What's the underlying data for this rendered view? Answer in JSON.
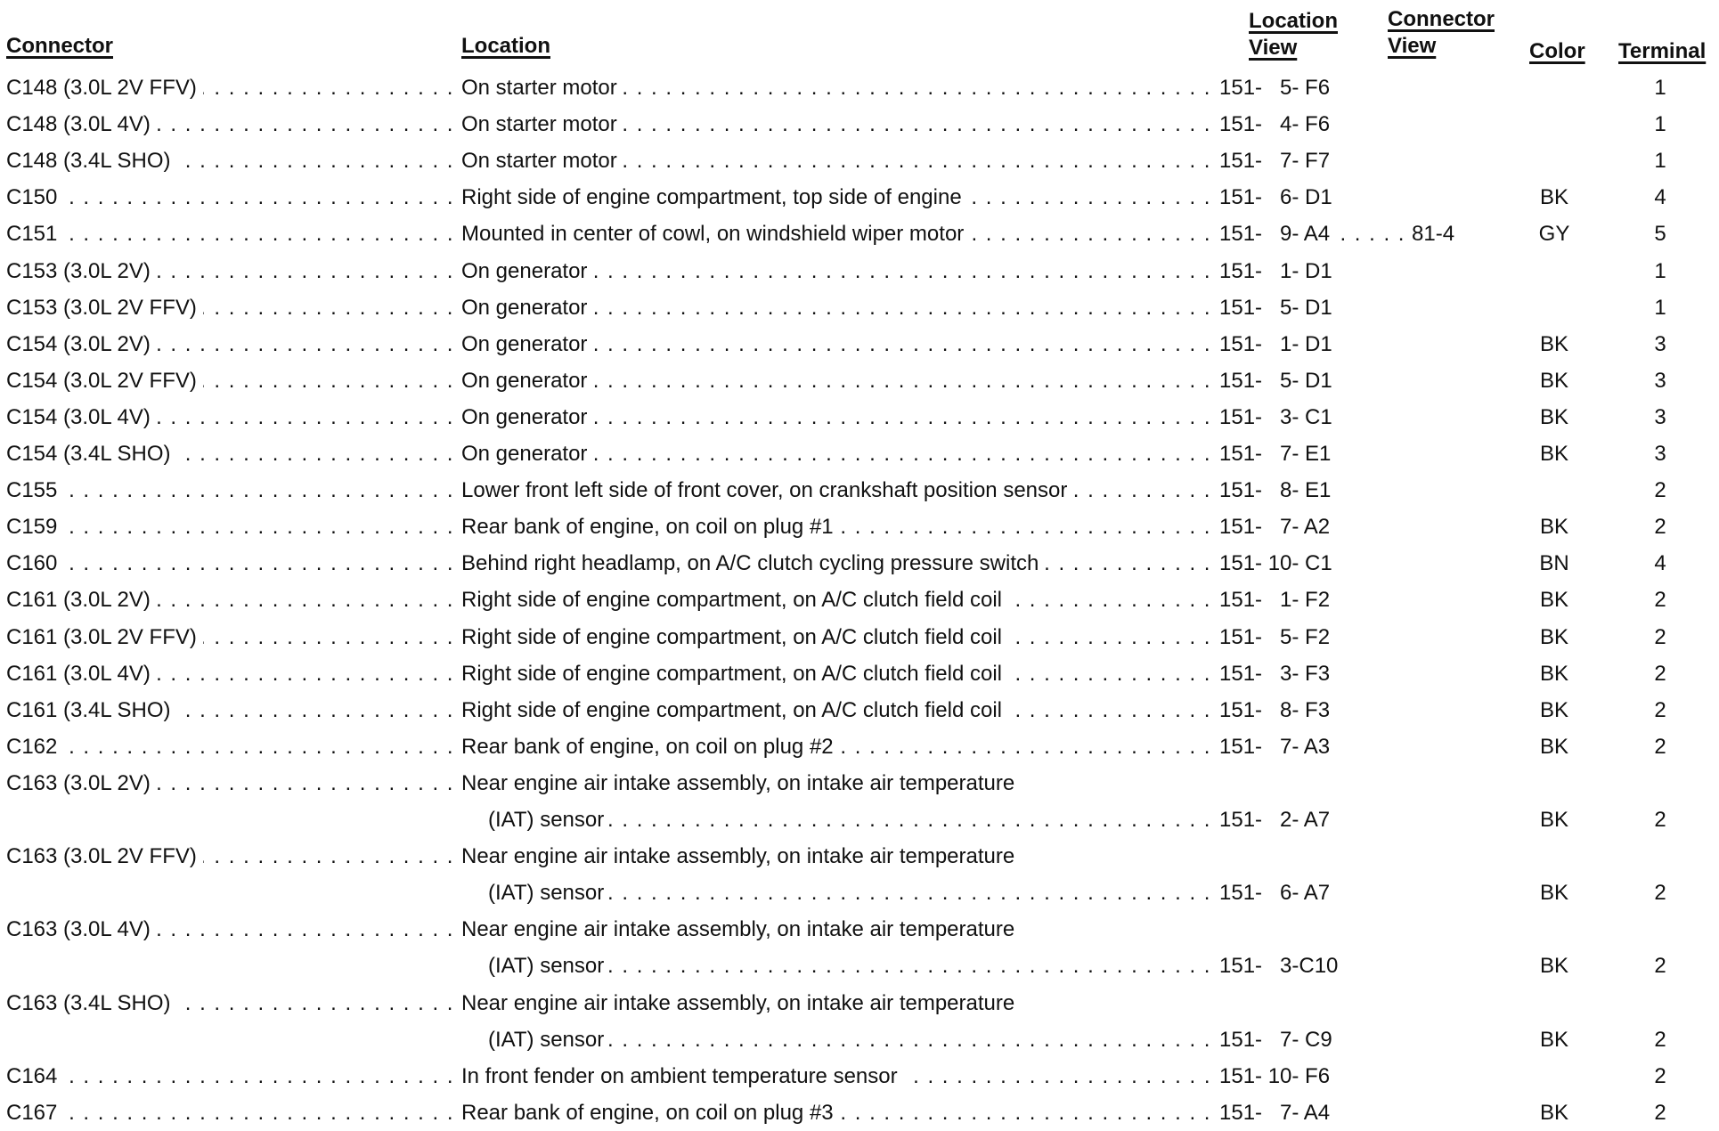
{
  "headers": {
    "connector": "Connector",
    "location": "Location",
    "location_view_1": "Location",
    "location_view_2": "View",
    "connector_view_1": "Connector",
    "connector_view_2": "View",
    "color": "Color",
    "terminal": "Terminal"
  },
  "rows": [
    {
      "connector": "C148 (3.0L 2V FFV)",
      "location": [
        "On starter motor"
      ],
      "location_view": "151- 5- F6",
      "connector_view": "",
      "color": "",
      "terminal": "1"
    },
    {
      "connector": "C148 (3.0L 4V)",
      "location": [
        "On starter motor"
      ],
      "location_view": "151- 4- F6",
      "connector_view": "",
      "color": "",
      "terminal": "1"
    },
    {
      "connector": "C148 (3.4L SHO)",
      "location": [
        "On starter motor"
      ],
      "location_view": "151- 7- F7",
      "connector_view": "",
      "color": "",
      "terminal": "1"
    },
    {
      "connector": "C150",
      "location": [
        "Right side of engine compartment, top side of engine"
      ],
      "location_view": "151- 6- D1",
      "connector_view": "",
      "color": "BK",
      "terminal": "4"
    },
    {
      "connector": "C151",
      "location": [
        "Mounted in center of cowl, on windshield wiper motor"
      ],
      "location_view": "151- 9- A4",
      "connector_view": "81-4",
      "color": "GY",
      "terminal": "5"
    },
    {
      "connector": "C153 (3.0L 2V)",
      "location": [
        "On generator"
      ],
      "location_view": "151- 1- D1",
      "connector_view": "",
      "color": "",
      "terminal": "1"
    },
    {
      "connector": "C153 (3.0L 2V FFV)",
      "location": [
        "On generator"
      ],
      "location_view": "151- 5- D1",
      "connector_view": "",
      "color": "",
      "terminal": "1"
    },
    {
      "connector": "C154 (3.0L 2V)",
      "location": [
        "On generator"
      ],
      "location_view": "151- 1- D1",
      "connector_view": "",
      "color": "BK",
      "terminal": "3"
    },
    {
      "connector": "C154 (3.0L 2V FFV)",
      "location": [
        "On generator"
      ],
      "location_view": "151- 5- D1",
      "connector_view": "",
      "color": "BK",
      "terminal": "3"
    },
    {
      "connector": "C154 (3.0L 4V)",
      "location": [
        "On generator"
      ],
      "location_view": "151- 3- C1",
      "connector_view": "",
      "color": "BK",
      "terminal": "3"
    },
    {
      "connector": "C154 (3.4L SHO)",
      "location": [
        "On generator"
      ],
      "location_view": "151- 7- E1",
      "connector_view": "",
      "color": "BK",
      "terminal": "3"
    },
    {
      "connector": "C155",
      "location": [
        "Lower front left side of front cover, on crankshaft position sensor"
      ],
      "location_view": "151- 8- E1",
      "connector_view": "",
      "color": "",
      "terminal": "2"
    },
    {
      "connector": "C159",
      "location": [
        "Rear bank of engine, on coil on plug #1"
      ],
      "location_view": "151- 7- A2",
      "connector_view": "",
      "color": "BK",
      "terminal": "2"
    },
    {
      "connector": "C160",
      "location": [
        "Behind right headlamp, on A/C clutch cycling pressure switch"
      ],
      "location_view": "151- 10- C1",
      "connector_view": "",
      "color": "BN",
      "terminal": "4"
    },
    {
      "connector": "C161 (3.0L 2V)",
      "location": [
        "Right side of engine compartment, on A/C clutch field coil"
      ],
      "location_view": "151- 1- F2",
      "connector_view": "",
      "color": "BK",
      "terminal": "2"
    },
    {
      "connector": "C161 (3.0L 2V FFV)",
      "location": [
        "Right side of engine compartment, on A/C clutch field coil"
      ],
      "location_view": "151- 5- F2",
      "connector_view": "",
      "color": "BK",
      "terminal": "2"
    },
    {
      "connector": "C161 (3.0L 4V)",
      "location": [
        "Right side of engine compartment, on A/C clutch field coil"
      ],
      "location_view": "151- 3- F3",
      "connector_view": "",
      "color": "BK",
      "terminal": "2"
    },
    {
      "connector": "C161 (3.4L SHO)",
      "location": [
        "Right side of engine compartment, on A/C clutch field coil"
      ],
      "location_view": "151- 8- F3",
      "connector_view": "",
      "color": "BK",
      "terminal": "2"
    },
    {
      "connector": "C162",
      "location": [
        "Rear bank of engine, on coil on plug #2"
      ],
      "location_view": "151- 7- A3",
      "connector_view": "",
      "color": "BK",
      "terminal": "2"
    },
    {
      "connector": "C163 (3.0L 2V)",
      "location": [
        "Near engine air intake assembly, on intake air temperature",
        "(IAT) sensor"
      ],
      "location_view": "151- 2- A7",
      "connector_view": "",
      "color": "BK",
      "terminal": "2"
    },
    {
      "connector": "C163 (3.0L 2V FFV)",
      "location": [
        "Near engine air intake assembly, on intake air temperature",
        "(IAT) sensor"
      ],
      "location_view": "151- 6- A7",
      "connector_view": "",
      "color": "BK",
      "terminal": "2"
    },
    {
      "connector": "C163 (3.0L 4V)",
      "location": [
        "Near engine air intake assembly, on intake air temperature",
        "(IAT) sensor"
      ],
      "location_view": "151- 3-C10",
      "connector_view": "",
      "color": "BK",
      "terminal": "2"
    },
    {
      "connector": "C163 (3.4L SHO)",
      "location": [
        "Near engine air intake assembly, on intake air temperature",
        "(IAT) sensor"
      ],
      "location_view": "151- 7- C9",
      "connector_view": "",
      "color": "BK",
      "terminal": "2"
    },
    {
      "connector": "C164",
      "location": [
        "In front fender on ambient temperature sensor"
      ],
      "location_view": "151- 10- F6",
      "connector_view": "",
      "color": "",
      "terminal": "2"
    },
    {
      "connector": "C167",
      "location": [
        "Rear bank of engine, on coil on plug #3"
      ],
      "location_view": "151- 7- A4",
      "connector_view": "",
      "color": "BK",
      "terminal": "2"
    }
  ]
}
